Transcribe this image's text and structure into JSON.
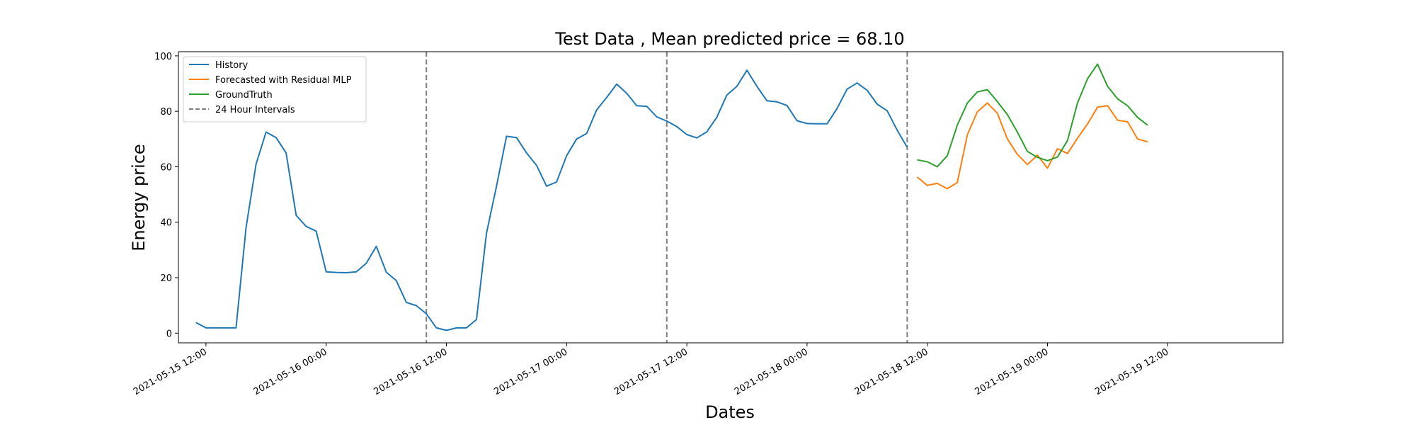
{
  "chart_data": {
    "type": "line",
    "title": "Test Data , Mean predicted price = 68.10",
    "xlabel": "Dates",
    "ylabel": "Energy price",
    "ylim": [
      -3.5,
      101.5
    ],
    "yticks": [
      0,
      20,
      40,
      60,
      80,
      100
    ],
    "xlim": [
      "2021-05-15 09:15",
      "2021-05-19 23:30"
    ],
    "xticks": [
      "2021-05-15 12:00",
      "2021-05-16 00:00",
      "2021-05-16 12:00",
      "2021-05-17 00:00",
      "2021-05-17 12:00",
      "2021-05-18 00:00",
      "2021-05-18 12:00",
      "2021-05-19 00:00",
      "2021-05-19 12:00"
    ],
    "vlines": [
      "2021-05-16 10:00",
      "2021-05-17 10:00",
      "2021-05-18 10:00"
    ],
    "grid": false,
    "legend_position": "upper-left",
    "series": [
      {
        "name": "History",
        "color": "#1f77b4",
        "style": "solid",
        "x": [
          "2021-05-15 11:00",
          "2021-05-15 12:00",
          "2021-05-15 13:00",
          "2021-05-15 14:00",
          "2021-05-15 15:00",
          "2021-05-15 16:00",
          "2021-05-15 17:00",
          "2021-05-15 18:00",
          "2021-05-15 19:00",
          "2021-05-15 20:00",
          "2021-05-15 21:00",
          "2021-05-15 22:00",
          "2021-05-15 23:00",
          "2021-05-16 00:00",
          "2021-05-16 01:00",
          "2021-05-16 02:00",
          "2021-05-16 03:00",
          "2021-05-16 04:00",
          "2021-05-16 05:00",
          "2021-05-16 06:00",
          "2021-05-16 07:00",
          "2021-05-16 08:00",
          "2021-05-16 09:00",
          "2021-05-16 10:00",
          "2021-05-16 11:00",
          "2021-05-16 12:00",
          "2021-05-16 13:00",
          "2021-05-16 14:00",
          "2021-05-16 15:00",
          "2021-05-16 16:00",
          "2021-05-16 17:00",
          "2021-05-16 18:00",
          "2021-05-16 19:00",
          "2021-05-16 20:00",
          "2021-05-16 21:00",
          "2021-05-16 22:00",
          "2021-05-16 23:00",
          "2021-05-17 00:00",
          "2021-05-17 01:00",
          "2021-05-17 02:00",
          "2021-05-17 03:00",
          "2021-05-17 04:00",
          "2021-05-17 05:00",
          "2021-05-17 06:00",
          "2021-05-17 07:00",
          "2021-05-17 08:00",
          "2021-05-17 09:00",
          "2021-05-17 10:00",
          "2021-05-17 11:00",
          "2021-05-17 12:00",
          "2021-05-17 13:00",
          "2021-05-17 14:00",
          "2021-05-17 15:00",
          "2021-05-17 16:00",
          "2021-05-17 17:00",
          "2021-05-17 18:00",
          "2021-05-17 19:00",
          "2021-05-17 20:00",
          "2021-05-17 21:00",
          "2021-05-17 22:00",
          "2021-05-17 23:00",
          "2021-05-18 00:00",
          "2021-05-18 01:00",
          "2021-05-18 02:00",
          "2021-05-18 03:00",
          "2021-05-18 04:00",
          "2021-05-18 05:00",
          "2021-05-18 06:00",
          "2021-05-18 07:00",
          "2021-05-18 08:00",
          "2021-05-18 09:00",
          "2021-05-18 10:00"
        ],
        "values": [
          3.8,
          1.9,
          1.9,
          1.9,
          1.9,
          38.0,
          61.0,
          72.5,
          70.5,
          65.0,
          42.5,
          38.5,
          36.8,
          22.1,
          21.9,
          21.8,
          22.1,
          25.2,
          31.3,
          22.0,
          18.9,
          11.1,
          9.9,
          7.0,
          1.9,
          1.0,
          1.9,
          1.9,
          4.9,
          36.0,
          53.0,
          71.0,
          70.5,
          65.0,
          60.5,
          53.0,
          54.5,
          64.0,
          70.0,
          72.0,
          80.5,
          85.0,
          89.8,
          86.5,
          82.0,
          81.8,
          78.0,
          76.5,
          74.5,
          71.6,
          70.4,
          72.6,
          77.9,
          85.9,
          89.0,
          94.8,
          89.0,
          83.8,
          83.4,
          82.1,
          76.6,
          75.6,
          75.5,
          75.5,
          81.0,
          88.0,
          90.2,
          87.6,
          82.6,
          80.2,
          73.2,
          67.0
        ]
      },
      {
        "name": "Forecasted with Residual MLP",
        "color": "#ff7f0e",
        "style": "solid",
        "x": [
          "2021-05-18 11:00",
          "2021-05-18 12:00",
          "2021-05-18 13:00",
          "2021-05-18 14:00",
          "2021-05-18 15:00",
          "2021-05-18 16:00",
          "2021-05-18 17:00",
          "2021-05-18 18:00",
          "2021-05-18 19:00",
          "2021-05-18 20:00",
          "2021-05-18 21:00",
          "2021-05-18 22:00",
          "2021-05-18 23:00",
          "2021-05-19 00:00",
          "2021-05-19 01:00",
          "2021-05-19 02:00",
          "2021-05-19 03:00",
          "2021-05-19 04:00",
          "2021-05-19 05:00",
          "2021-05-19 06:00",
          "2021-05-19 07:00",
          "2021-05-19 08:00",
          "2021-05-19 09:00",
          "2021-05-19 10:00",
          "2021-05-19 11:00"
        ],
        "values": [
          56.3,
          53.3,
          54.0,
          52.1,
          54.3,
          71.5,
          79.8,
          83.0,
          79.3,
          70.0,
          64.5,
          60.8,
          64.2,
          59.5,
          66.5,
          64.8,
          70.3,
          75.5,
          81.5,
          82.0,
          76.8,
          76.2,
          70.0,
          69.0,
          null
        ]
      },
      {
        "name": "GroundTruth",
        "color": "#2ca02c",
        "style": "solid",
        "x": [
          "2021-05-18 11:00",
          "2021-05-18 12:00",
          "2021-05-18 13:00",
          "2021-05-18 14:00",
          "2021-05-18 15:00",
          "2021-05-18 16:00",
          "2021-05-18 17:00",
          "2021-05-18 18:00",
          "2021-05-18 19:00",
          "2021-05-18 20:00",
          "2021-05-18 21:00",
          "2021-05-18 22:00",
          "2021-05-18 23:00",
          "2021-05-19 00:00",
          "2021-05-19 01:00",
          "2021-05-19 02:00",
          "2021-05-19 03:00",
          "2021-05-19 04:00",
          "2021-05-19 05:00",
          "2021-05-19 06:00",
          "2021-05-19 07:00",
          "2021-05-19 08:00",
          "2021-05-19 09:00",
          "2021-05-19 10:00"
        ],
        "values": [
          62.5,
          61.8,
          60.0,
          64.0,
          75.0,
          83.0,
          87.0,
          87.8,
          83.5,
          78.8,
          72.5,
          65.5,
          63.4,
          62.2,
          63.5,
          69.5,
          83.0,
          91.8,
          97.0,
          89.0,
          84.5,
          82.0,
          77.8,
          75.0
        ]
      }
    ],
    "legend_extra": {
      "name": "24 Hour Intervals",
      "color": "#7f7f7f",
      "style": "dashed"
    }
  }
}
